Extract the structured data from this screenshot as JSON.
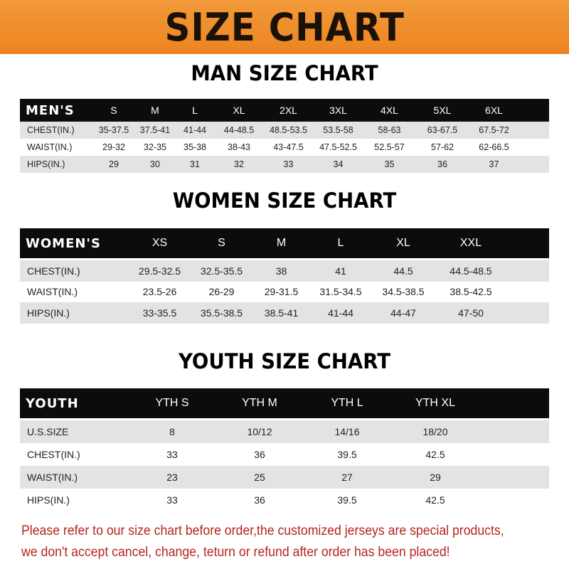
{
  "banner": "SIZE CHART",
  "men": {
    "title": "MAN SIZE CHART",
    "header": [
      "MEN'S",
      "S",
      "M",
      "L",
      "XL",
      "2XL",
      "3XL",
      "4XL",
      "5XL",
      "6XL"
    ],
    "rows": [
      [
        "CHEST(IN.)",
        "35-37.5",
        "37.5-41",
        "41-44",
        "44-48.5",
        "48.5-53.5",
        "53.5-58",
        "58-63",
        "63-67.5",
        "67.5-72"
      ],
      [
        "WAIST(IN.)",
        "29-32",
        "32-35",
        "35-38",
        "38-43",
        "43-47.5",
        "47.5-52.5",
        "52.5-57",
        "57-62",
        "62-66.5"
      ],
      [
        "HIPS(IN.)",
        "29",
        "30",
        "31",
        "32",
        "33",
        "34",
        "35",
        "36",
        "37"
      ]
    ]
  },
  "women": {
    "title": "WOMEN SIZE CHART",
    "header": [
      "WOMEN'S",
      "XS",
      "S",
      "M",
      "L",
      "XL",
      "XXL"
    ],
    "rows": [
      [
        "CHEST(IN.)",
        "29.5-32.5",
        "32.5-35.5",
        "38",
        "41",
        "44.5",
        "44.5-48.5"
      ],
      [
        "WAIST(IN.)",
        "23.5-26",
        "26-29",
        "29-31.5",
        "31.5-34.5",
        "34.5-38.5",
        "38.5-42.5"
      ],
      [
        "HIPS(IN.)",
        "33-35.5",
        "35.5-38.5",
        "38.5-41",
        "41-44",
        "44-47",
        "47-50"
      ]
    ]
  },
  "youth": {
    "title": "YOUTH SIZE CHART",
    "header": [
      "YOUTH",
      "YTH S",
      "YTH M",
      "YTH L",
      "YTH XL"
    ],
    "rows": [
      [
        "U.S.SIZE",
        "8",
        "10/12",
        "14/16",
        "18/20"
      ],
      [
        "CHEST(IN.)",
        "33",
        "36",
        "39.5",
        "42.5"
      ],
      [
        "WAIST(IN.)",
        "23",
        "25",
        "27",
        "29"
      ],
      [
        "HIPS(IN.)",
        "33",
        "36",
        "39.5",
        "42.5"
      ]
    ]
  },
  "note": {
    "line1": "Please refer to our size chart before order,the customized jerseys are special products,",
    "line2": "we don't accept cancel, change, teturn or refund after order has been placed!"
  },
  "colors": {
    "banner": "#ec8420",
    "header_row": "#0c0c0c",
    "stripe": "#e3e3e3",
    "note": "#b5261e"
  }
}
